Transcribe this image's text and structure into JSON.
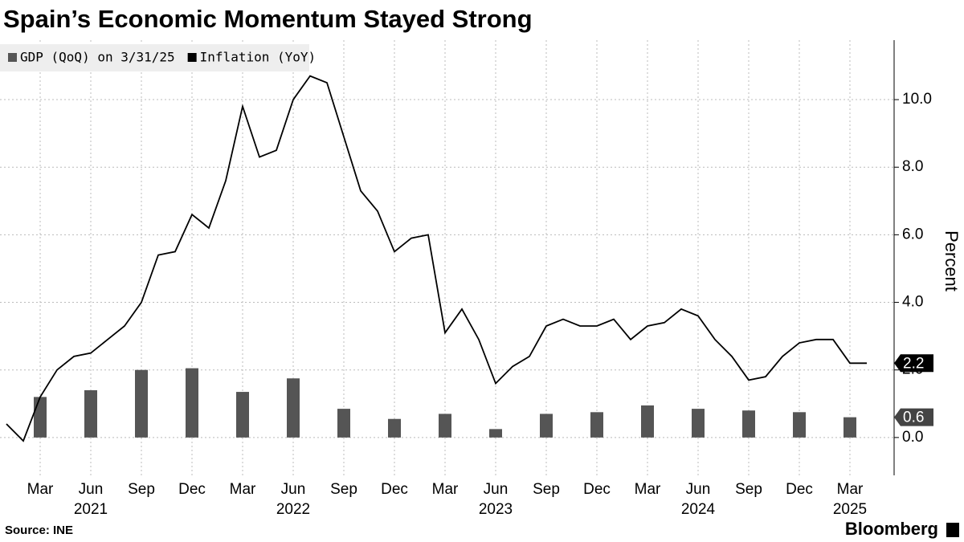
{
  "chart_data": {
    "type": "bar+line",
    "title": "Spain’s Economic Momentum Stayed Strong",
    "y_axis_label": "Percent",
    "source": "Source: INE",
    "brand": "Bloomberg",
    "ylim": [
      -1.12,
      11.76
    ],
    "yticks": [
      {
        "value": 0,
        "label": "0.0"
      },
      {
        "value": 2,
        "label": "2.0"
      },
      {
        "value": 4,
        "label": "4.0"
      },
      {
        "value": 6,
        "label": "6.0"
      },
      {
        "value": 8,
        "label": "8.0"
      },
      {
        "value": 10,
        "label": "10.0"
      }
    ],
    "xticks": [
      {
        "value": "2021-03",
        "label": "Mar"
      },
      {
        "value": "2021-06",
        "label": "Jun"
      },
      {
        "value": "2021-09",
        "label": "Sep"
      },
      {
        "value": "2021-12",
        "label": "Dec"
      },
      {
        "value": "2022-03",
        "label": "Mar"
      },
      {
        "value": "2022-06",
        "label": "Jun"
      },
      {
        "value": "2022-09",
        "label": "Sep"
      },
      {
        "value": "2022-12",
        "label": "Dec"
      },
      {
        "value": "2023-03",
        "label": "Mar"
      },
      {
        "value": "2023-06",
        "label": "Jun"
      },
      {
        "value": "2023-09",
        "label": "Sep"
      },
      {
        "value": "2023-12",
        "label": "Dec"
      },
      {
        "value": "2024-03",
        "label": "Mar"
      },
      {
        "value": "2024-06",
        "label": "Jun"
      },
      {
        "value": "2024-09",
        "label": "Sep"
      },
      {
        "value": "2024-12",
        "label": "Dec"
      },
      {
        "value": "2025-03",
        "label": "Mar"
      }
    ],
    "year_labels": [
      {
        "value": "2021-06",
        "label": "2021"
      },
      {
        "value": "2022-06",
        "label": "2022"
      },
      {
        "value": "2023-06",
        "label": "2023"
      },
      {
        "value": "2024-06",
        "label": "2024"
      },
      {
        "value": "2025-03",
        "label": "2025"
      }
    ],
    "grid": true,
    "legend": "top-left",
    "series": [
      {
        "name": "GDP (QoQ) on 3/31/25",
        "type": "bar",
        "color": "#555555",
        "x": [
          "2021-03",
          "2021-06",
          "2021-09",
          "2021-12",
          "2022-03",
          "2022-06",
          "2022-09",
          "2022-12",
          "2023-03",
          "2023-06",
          "2023-09",
          "2023-12",
          "2024-03",
          "2024-06",
          "2024-09",
          "2024-12",
          "2025-03"
        ],
        "values": [
          1.2,
          1.4,
          2.0,
          2.05,
          1.35,
          1.75,
          0.85,
          0.55,
          0.7,
          0.25,
          0.7,
          0.75,
          0.95,
          0.85,
          0.8,
          0.75,
          0.6
        ]
      },
      {
        "name": "Inflation (YoY)",
        "type": "line",
        "color": "#000000",
        "x": [
          "2021-01",
          "2021-02",
          "2021-03",
          "2021-04",
          "2021-05",
          "2021-06",
          "2021-07",
          "2021-08",
          "2021-09",
          "2021-10",
          "2021-11",
          "2021-12",
          "2022-01",
          "2022-02",
          "2022-03",
          "2022-04",
          "2022-05",
          "2022-06",
          "2022-07",
          "2022-08",
          "2022-09",
          "2022-10",
          "2022-11",
          "2022-12",
          "2023-01",
          "2023-02",
          "2023-03",
          "2023-04",
          "2023-05",
          "2023-06",
          "2023-07",
          "2023-08",
          "2023-09",
          "2023-10",
          "2023-11",
          "2023-12",
          "2024-01",
          "2024-02",
          "2024-03",
          "2024-04",
          "2024-05",
          "2024-06",
          "2024-07",
          "2024-08",
          "2024-09",
          "2024-10",
          "2024-11",
          "2024-12",
          "2025-01",
          "2025-02",
          "2025-03",
          "2025-04"
        ],
        "values": [
          0.4,
          -0.1,
          1.2,
          2.0,
          2.4,
          2.5,
          2.9,
          3.3,
          4.0,
          5.4,
          5.5,
          6.6,
          6.2,
          7.6,
          9.8,
          8.3,
          8.5,
          10.0,
          10.7,
          10.5,
          8.9,
          7.3,
          6.7,
          5.5,
          5.9,
          6.0,
          3.1,
          3.8,
          2.9,
          1.6,
          2.1,
          2.4,
          3.3,
          3.5,
          3.3,
          3.3,
          3.5,
          2.9,
          3.3,
          3.4,
          3.8,
          3.6,
          2.9,
          2.4,
          1.7,
          1.8,
          2.4,
          2.8,
          2.9,
          2.9,
          2.2,
          2.2
        ]
      }
    ]
  }
}
